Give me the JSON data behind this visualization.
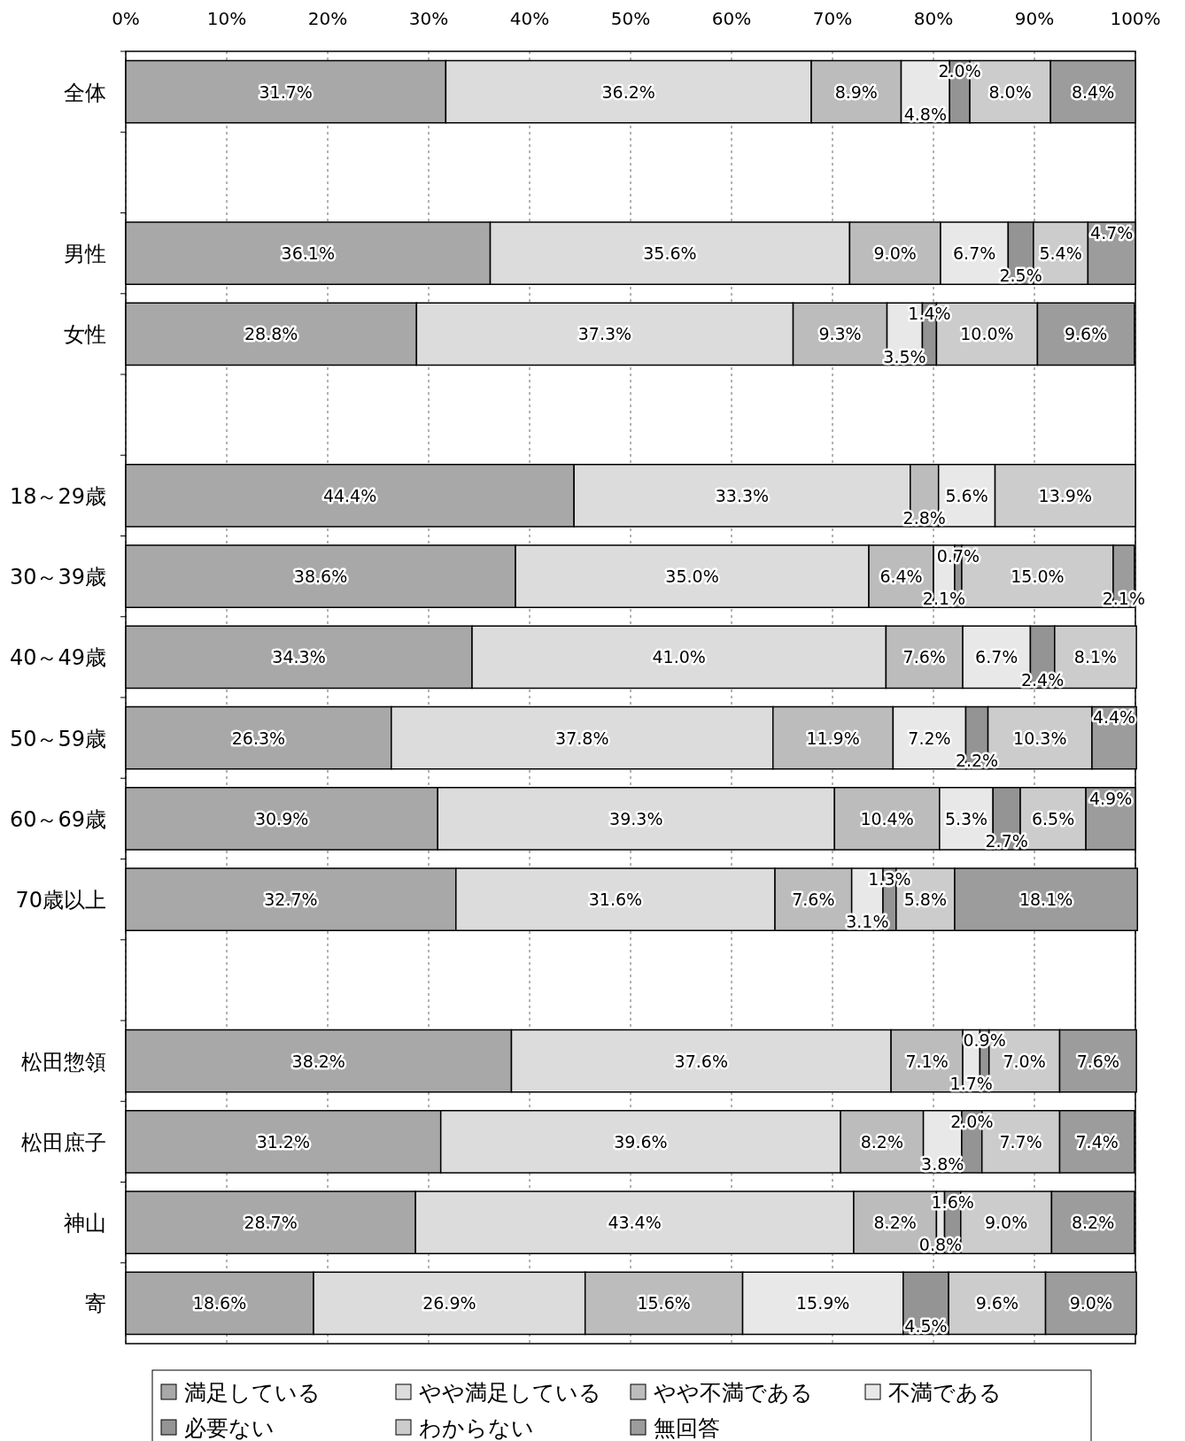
{
  "chart_data": {
    "type": "bar",
    "orientation": "horizontal",
    "stacked": true,
    "grid": "x",
    "legend": "bottom",
    "categories": [
      "全体",
      null,
      "男性",
      "女性",
      null,
      "18～29歳",
      "30～39歳",
      "40～49歳",
      "50～59歳",
      "60～69歳",
      "70歳以上",
      null,
      "松田惣領",
      "松田庶子",
      "神山",
      "寄"
    ],
    "xlim": [
      0,
      100
    ],
    "xticks": [
      {
        "value": 0,
        "label": "0%"
      },
      {
        "value": 10,
        "label": "10%"
      },
      {
        "value": 20,
        "label": "20%"
      },
      {
        "value": 30,
        "label": "30%"
      },
      {
        "value": 40,
        "label": "40%"
      },
      {
        "value": 50,
        "label": "50%"
      },
      {
        "value": 60,
        "label": "60%"
      },
      {
        "value": 70,
        "label": "70%"
      },
      {
        "value": 80,
        "label": "80%"
      },
      {
        "value": 90,
        "label": "90%"
      },
      {
        "value": 100,
        "label": "100%"
      }
    ],
    "series": [
      {
        "name": "満足している",
        "color": "#a8a8a8",
        "values": [
          31.7,
          null,
          36.1,
          28.8,
          null,
          44.4,
          38.6,
          34.3,
          26.3,
          30.9,
          32.7,
          null,
          38.2,
          31.2,
          28.7,
          18.6
        ],
        "value_labels": [
          "31.7%",
          null,
          "36.1%",
          "28.8%",
          null,
          "44.4%",
          "38.6%",
          "34.3%",
          "26.3%",
          "30.9%",
          "32.7%",
          null,
          "38.2%",
          "31.2%",
          "28.7%",
          "18.6%"
        ]
      },
      {
        "name": "やや満足している",
        "color": "#dcdcdc",
        "values": [
          36.2,
          null,
          35.6,
          37.3,
          null,
          33.3,
          35.0,
          41.0,
          37.8,
          39.3,
          31.6,
          null,
          37.6,
          39.6,
          43.4,
          26.9
        ],
        "value_labels": [
          "36.2%",
          null,
          "35.6%",
          "37.3%",
          null,
          "33.3%",
          "35.0%",
          "41.0%",
          "37.8%",
          "39.3%",
          "31.6%",
          null,
          "37.6%",
          "39.6%",
          "43.4%",
          "26.9%"
        ]
      },
      {
        "name": "やや不満である",
        "color": "#bcbcbc",
        "values": [
          8.9,
          null,
          9.0,
          9.3,
          null,
          2.8,
          6.4,
          7.6,
          11.9,
          10.4,
          7.6,
          null,
          7.1,
          8.2,
          8.2,
          15.6
        ],
        "value_labels": [
          "8.9%",
          null,
          "9.0%",
          "9.3%",
          null,
          "2.8%",
          "6.4%",
          "7.6%",
          "11.9%",
          "10.4%",
          "7.6%",
          null,
          "7.1%",
          "8.2%",
          "8.2%",
          "15.6%"
        ]
      },
      {
        "name": "不満である",
        "color": "#e8e8e8",
        "values": [
          4.8,
          null,
          6.7,
          3.5,
          null,
          5.6,
          2.1,
          6.7,
          7.2,
          5.3,
          3.1,
          null,
          1.7,
          3.8,
          0.8,
          15.9
        ],
        "value_labels": [
          "4.8%",
          null,
          "6.7%",
          "3.5%",
          null,
          "5.6%",
          "2.1%",
          "6.7%",
          "7.2%",
          "5.3%",
          "3.1%",
          null,
          "1.7%",
          "3.8%",
          "0.8%",
          "15.9%"
        ]
      },
      {
        "name": "必要ない",
        "color": "#949494",
        "values": [
          2.0,
          null,
          2.5,
          1.4,
          null,
          null,
          0.7,
          2.4,
          2.2,
          2.7,
          1.3,
          null,
          0.9,
          2.0,
          1.6,
          4.5
        ],
        "value_labels": [
          "2.0%",
          null,
          "2.5%",
          "1.4%",
          null,
          null,
          "0.7%",
          "2.4%",
          "2.2%",
          "2.7%",
          "1.3%",
          null,
          "0.9%",
          "2.0%",
          "1.6%",
          "4.5%"
        ]
      },
      {
        "name": "わからない",
        "color": "#cccccc",
        "values": [
          8.0,
          null,
          5.4,
          10.0,
          null,
          13.9,
          15.0,
          8.1,
          10.3,
          6.5,
          5.8,
          null,
          7.0,
          7.7,
          9.0,
          9.6
        ],
        "value_labels": [
          "8.0%",
          null,
          "5.4%",
          "10.0%",
          null,
          "13.9%",
          "15.0%",
          "8.1%",
          "10.3%",
          "6.5%",
          "5.8%",
          null,
          "7.0%",
          "7.7%",
          "9.0%",
          "9.6%"
        ]
      },
      {
        "name": "無回答",
        "color": "#9c9c9c",
        "values": [
          8.4,
          null,
          4.7,
          9.6,
          null,
          null,
          2.1,
          null,
          4.4,
          4.9,
          18.1,
          null,
          7.6,
          7.4,
          8.2,
          9.0
        ],
        "value_labels": [
          "8.4%",
          null,
          "4.7%",
          "9.6%",
          null,
          null,
          "2.1%",
          null,
          "4.4%",
          "4.9%",
          "18.1%",
          null,
          "7.6%",
          "7.4%",
          "8.2%",
          "9.0%"
        ]
      }
    ]
  }
}
